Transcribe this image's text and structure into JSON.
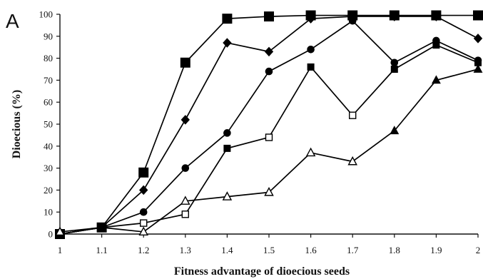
{
  "panel_label": "A",
  "chart_data": {
    "type": "line",
    "title": "",
    "xlabel": "Fitness advantage of dioecious seeds",
    "ylabel": "Dioecious (%)",
    "xlim": [
      1,
      2
    ],
    "ylim": [
      0,
      100
    ],
    "x": [
      1,
      1.1,
      1.2,
      1.3,
      1.4,
      1.5,
      1.6,
      1.7,
      1.8,
      1.9,
      2
    ],
    "x_tick_labels": [
      "1",
      "1.1",
      "1.2",
      "1.3",
      "1.4",
      "1.5",
      "1.6",
      "1.7",
      "1.8",
      "1.9",
      "2"
    ],
    "y_ticks": [
      0,
      10,
      20,
      30,
      40,
      50,
      60,
      70,
      80,
      90,
      100
    ],
    "grid": false,
    "legend": "none",
    "series": [
      {
        "id": "large-squares",
        "marker": "square-large",
        "color": "#000000",
        "values": [
          0,
          3,
          28,
          78,
          98,
          99,
          99.5,
          99.5,
          99.5,
          99.5,
          99.5
        ]
      },
      {
        "id": "diamonds",
        "marker": "diamond",
        "color": "#000000",
        "values": [
          0,
          3,
          20,
          52,
          87,
          83,
          98,
          99,
          99,
          99,
          89
        ]
      },
      {
        "id": "circles",
        "marker": "circle",
        "color": "#000000",
        "values": [
          0,
          3,
          10,
          30,
          46,
          74,
          84,
          97,
          78,
          88,
          79
        ]
      },
      {
        "id": "squares",
        "marker": "square-mixed",
        "color": "#000000",
        "values": [
          0,
          3,
          5,
          9,
          39,
          44,
          76,
          54,
          75,
          86,
          78
        ],
        "open_points": [
          2,
          3,
          5,
          7
        ]
      },
      {
        "id": "triangles",
        "marker": "triangle-mixed",
        "color": "#000000",
        "values": [
          1,
          3,
          1,
          15,
          17,
          19,
          37,
          33,
          47,
          70,
          75
        ],
        "open_points": [
          0,
          2,
          3,
          4,
          5,
          6,
          7
        ]
      }
    ]
  }
}
